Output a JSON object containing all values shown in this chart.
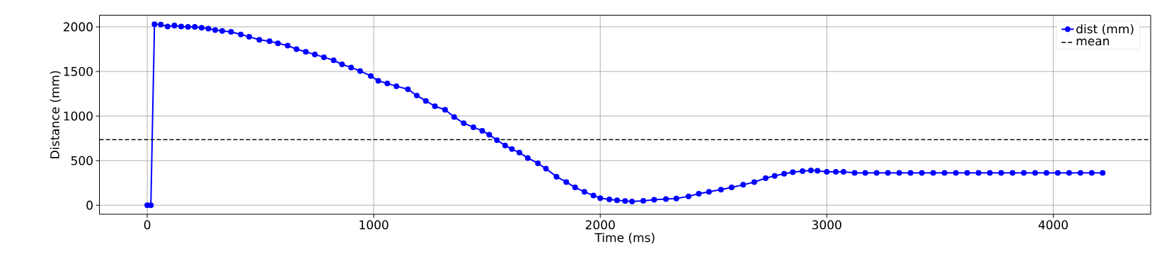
{
  "chart_data": {
    "type": "line",
    "xlabel": "Time (ms)",
    "ylabel": "Distance (mm)",
    "x": [
      0,
      16,
      32,
      60,
      90,
      120,
      150,
      180,
      210,
      240,
      270,
      300,
      331,
      370,
      413,
      450,
      495,
      540,
      577,
      620,
      659,
      700,
      740,
      780,
      823,
      860,
      900,
      940,
      987,
      1020,
      1060,
      1100,
      1151,
      1190,
      1230,
      1270,
      1315,
      1355,
      1397,
      1440,
      1479,
      1510,
      1544,
      1580,
      1610,
      1643,
      1680,
      1725,
      1760,
      1807,
      1850,
      1889,
      1930,
      1970,
      2000,
      2040,
      2074,
      2110,
      2140,
      2190,
      2238,
      2290,
      2336,
      2390,
      2435,
      2480,
      2533,
      2580,
      2631,
      2680,
      2730,
      2770,
      2812,
      2850,
      2893,
      2930,
      2959,
      3000,
      3040,
      3074,
      3123,
      3170,
      3220,
      3270,
      3320,
      3370,
      3420,
      3470,
      3520,
      3570,
      3620,
      3670,
      3720,
      3770,
      3820,
      3870,
      3920,
      3970,
      4020,
      4070,
      4120,
      4170,
      4218
    ],
    "series": [
      {
        "name": "dist (mm)",
        "color": "#0000ff",
        "values": [
          0,
          0,
          2030,
          2025,
          2005,
          2015,
          2005,
          2000,
          2000,
          1990,
          1980,
          1965,
          1955,
          1945,
          1915,
          1890,
          1855,
          1840,
          1815,
          1790,
          1750,
          1720,
          1690,
          1660,
          1625,
          1580,
          1545,
          1505,
          1450,
          1395,
          1365,
          1335,
          1300,
          1230,
          1170,
          1110,
          1070,
          990,
          920,
          875,
          835,
          790,
          730,
          670,
          630,
          590,
          530,
          470,
          410,
          320,
          260,
          200,
          150,
          110,
          80,
          65,
          55,
          48,
          42,
          50,
          62,
          70,
          75,
          100,
          129,
          150,
          175,
          200,
          229,
          260,
          304,
          330,
          353,
          370,
          383,
          390,
          387,
          374,
          374,
          374,
          362,
          362,
          362,
          362,
          362,
          362,
          362,
          362,
          362,
          362,
          362,
          362,
          362,
          362,
          362,
          362,
          362,
          362,
          362,
          362,
          362,
          362,
          362
        ]
      }
    ],
    "xlim": [
      -211,
      4430
    ],
    "ylim": [
      -101,
      2131
    ],
    "xticks": [
      0,
      1000,
      2000,
      3000,
      4000
    ],
    "yticks": [
      0,
      500,
      1000,
      1500,
      2000
    ],
    "ref_lines": [
      {
        "axis": "y",
        "value": 736,
        "label": "mean",
        "color": "#000000",
        "line_style": "dashed"
      }
    ],
    "grid": true,
    "legend": "top right",
    "marker": "circle",
    "line_style": "solid"
  }
}
